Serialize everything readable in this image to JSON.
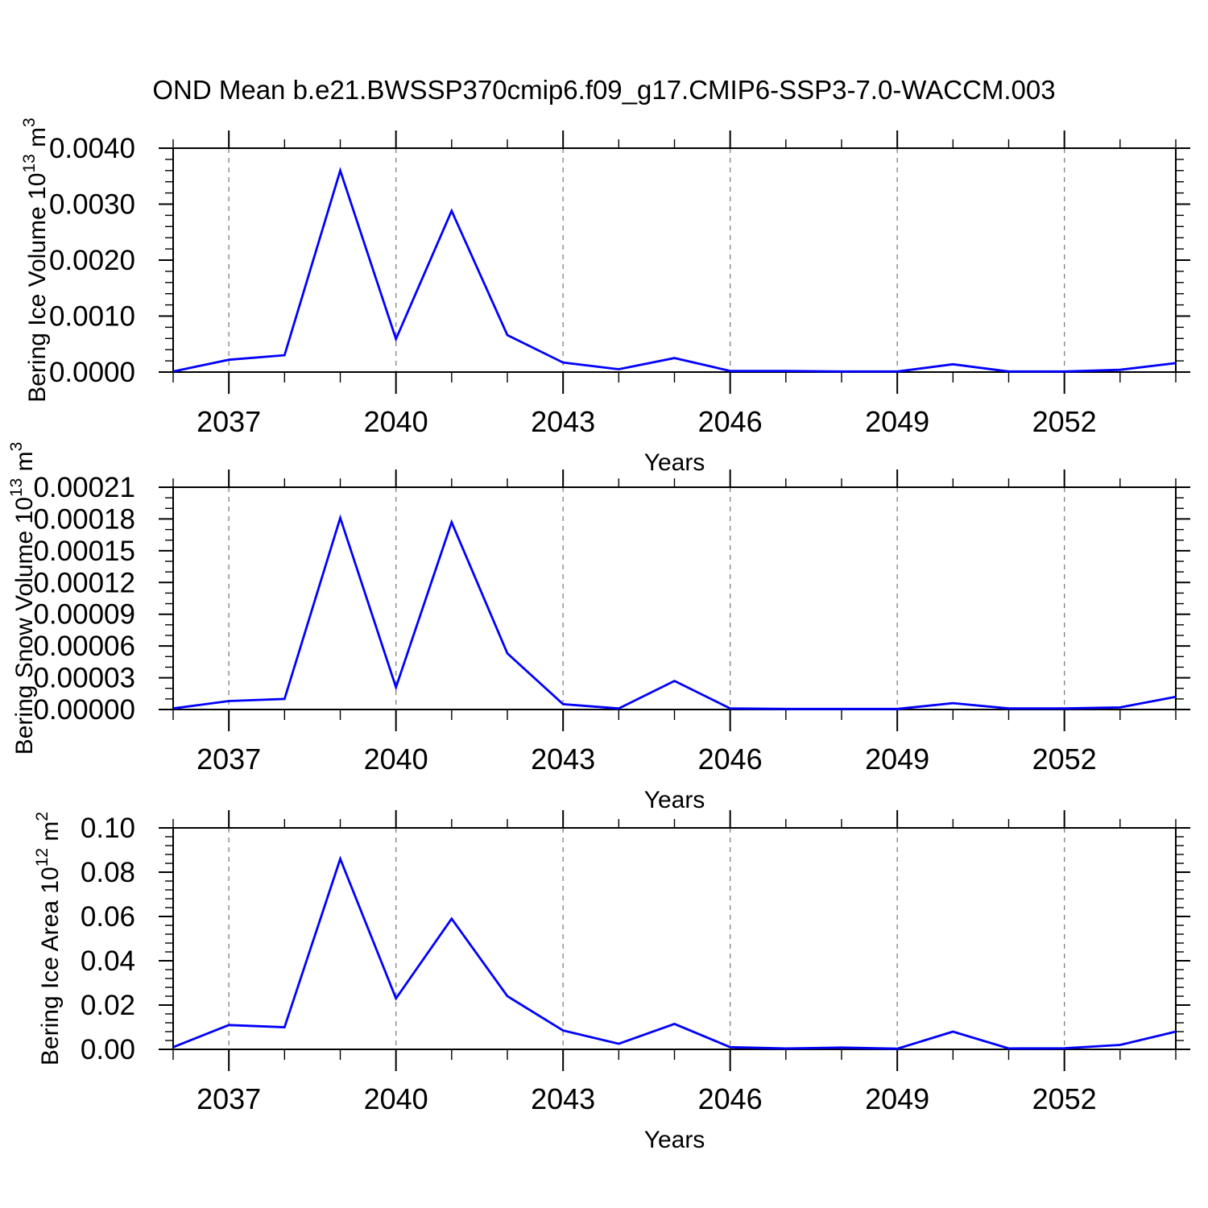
{
  "title": "OND Mean b.e21.BWSSP370cmip6.f09_g17.CMIP6-SSP3-7.0-WACCM.003",
  "accent_color": "#0000ff",
  "grid_color": "#808080",
  "axis_color": "#000000",
  "chart_data": [
    {
      "id": "bering-ice-volume",
      "type": "line",
      "title": "",
      "ylabel": "Bering Ice Volume 10^13 m^3",
      "ylabel_parts": {
        "base": "Bering Ice Volume 10",
        "base_exp": "13",
        "unit": " m",
        "unit_exp": "3"
      },
      "xlabel": "Years",
      "x": [
        2036,
        2037,
        2038,
        2039,
        2040,
        2041,
        2042,
        2043,
        2044,
        2045,
        2046,
        2047,
        2048,
        2049,
        2050,
        2051,
        2052,
        2053,
        2054
      ],
      "values": [
        1e-05,
        0.00022,
        0.0003,
        0.0036,
        0.00059,
        0.00288,
        0.00066,
        0.00017,
        5e-05,
        0.00025,
        2e-05,
        2e-05,
        1e-05,
        1e-05,
        0.00014,
        1e-05,
        1e-05,
        4e-05,
        0.00016
      ],
      "xlim": [
        2036,
        2054
      ],
      "ylim": [
        0,
        0.004
      ],
      "ytick_labels": [
        "0.0000",
        "0.0010",
        "0.0020",
        "0.0030",
        "0.0040"
      ],
      "yminor_div": 5,
      "xtick_years": [
        2037,
        2040,
        2043,
        2046,
        2049,
        2052
      ],
      "xtick_labels": [
        "2037",
        "2040",
        "2043",
        "2046",
        "2049",
        "2052"
      ],
      "grid": "vertical-dashed",
      "legend": "none",
      "line_color": "#0000ff"
    },
    {
      "id": "bering-snow-volume",
      "type": "line",
      "title": "",
      "ylabel": "Bering Snow Volume 10^13 m^3",
      "ylabel_parts": {
        "base": "Bering Snow Volume 10",
        "base_exp": "13",
        "unit": " m",
        "unit_exp": "3"
      },
      "xlabel": "Years",
      "x": [
        2036,
        2037,
        2038,
        2039,
        2040,
        2041,
        2042,
        2043,
        2044,
        2045,
        2046,
        2047,
        2048,
        2049,
        2050,
        2051,
        2052,
        2053,
        2054
      ],
      "values": [
        1e-06,
        8e-06,
        1e-05,
        0.000181,
        2.1e-05,
        0.000177,
        5.3e-05,
        5e-06,
        1e-06,
        2.7e-05,
        1e-06,
        5e-07,
        5e-07,
        5e-07,
        6e-06,
        1e-06,
        1e-06,
        2e-06,
        1.2e-05
      ],
      "xlim": [
        2036,
        2054
      ],
      "ylim": [
        0,
        0.00021
      ],
      "ytick_labels": [
        "0.00000",
        "0.00003",
        "0.00006",
        "0.00009",
        "0.00012",
        "0.00015",
        "0.00018",
        "0.00021"
      ],
      "yminor_div": 3,
      "xtick_years": [
        2037,
        2040,
        2043,
        2046,
        2049,
        2052
      ],
      "xtick_labels": [
        "2037",
        "2040",
        "2043",
        "2046",
        "2049",
        "2052"
      ],
      "grid": "vertical-dashed",
      "legend": "none",
      "line_color": "#0000ff"
    },
    {
      "id": "bering-ice-area",
      "type": "line",
      "title": "",
      "ylabel": "Bering Ice Area 10^12 m^2",
      "ylabel_parts": {
        "base": "Bering Ice Area 10",
        "base_exp": "12",
        "unit": " m",
        "unit_exp": "2"
      },
      "xlabel": "Years",
      "x": [
        2036,
        2037,
        2038,
        2039,
        2040,
        2041,
        2042,
        2043,
        2044,
        2045,
        2046,
        2047,
        2048,
        2049,
        2050,
        2051,
        2052,
        2053,
        2054
      ],
      "values": [
        0.001,
        0.011,
        0.01,
        0.086,
        0.023,
        0.059,
        0.024,
        0.0085,
        0.0025,
        0.0115,
        0.001,
        0.0004,
        0.0008,
        0.0003,
        0.008,
        0.0004,
        0.0005,
        0.002,
        0.008
      ],
      "xlim": [
        2036,
        2054
      ],
      "ylim": [
        0,
        0.1
      ],
      "ytick_labels": [
        "0.00",
        "0.02",
        "0.04",
        "0.06",
        "0.08",
        "0.10"
      ],
      "yminor_div": 5,
      "xtick_years": [
        2037,
        2040,
        2043,
        2046,
        2049,
        2052
      ],
      "xtick_labels": [
        "2037",
        "2040",
        "2043",
        "2046",
        "2049",
        "2052"
      ],
      "grid": "vertical-dashed",
      "legend": "none",
      "line_color": "#0000ff"
    }
  ]
}
